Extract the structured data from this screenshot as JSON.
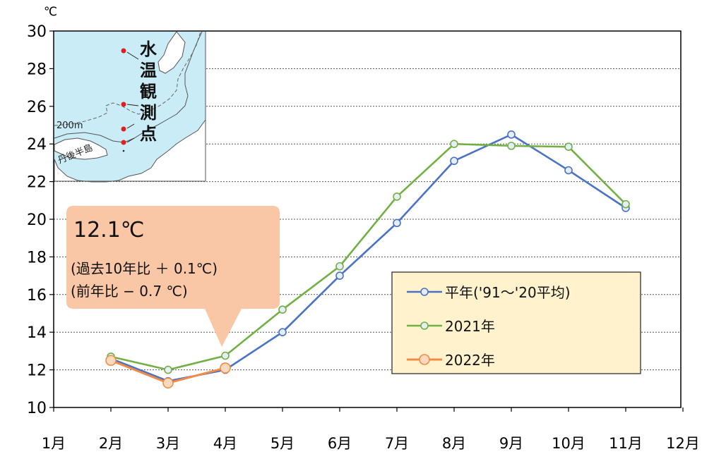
{
  "chart_data": {
    "type": "line",
    "y_unit": "℃",
    "ylim": [
      10,
      30
    ],
    "yticks": [
      10,
      12,
      14,
      16,
      18,
      20,
      22,
      24,
      26,
      28,
      30
    ],
    "categories": [
      "1月",
      "2月",
      "3月",
      "4月",
      "5月",
      "6月",
      "7月",
      "8月",
      "9月",
      "10月",
      "11月",
      "12月"
    ],
    "grid": "horizontal dotted",
    "series": [
      {
        "name": "平年('91～'20平均)",
        "color": "#4a72c6",
        "values": [
          null,
          12.6,
          11.4,
          12.0,
          14.0,
          17.0,
          19.8,
          23.1,
          24.5,
          22.6,
          20.6,
          null
        ]
      },
      {
        "name": "2021年",
        "color": "#72b043",
        "values": [
          null,
          12.7,
          12.0,
          12.75,
          15.2,
          17.5,
          21.2,
          24.0,
          23.9,
          23.85,
          20.8,
          null
        ]
      },
      {
        "name": "2022年",
        "color": "#f08c46",
        "values": [
          null,
          12.5,
          11.3,
          12.1,
          null,
          null,
          null,
          null,
          null,
          null,
          null,
          null
        ]
      }
    ],
    "legend": {
      "placement": "right-middle",
      "entries": [
        "平年('91～'20平均)",
        "2021年",
        "2022年"
      ]
    },
    "callout": {
      "main": "12.1℃",
      "line1": "(過去10年比 ＋ 0.1℃)",
      "line2": "(前年比 − 0.7 ℃)",
      "color": "#f9c7a6"
    },
    "inset_map": {
      "vertical_label": [
        "水",
        "温",
        "観",
        "測",
        "点"
      ],
      "depth_label": "200m",
      "peninsula_label": "丹後半島",
      "sea_color": "#c9ecf7",
      "station_color": "#e02020"
    }
  }
}
